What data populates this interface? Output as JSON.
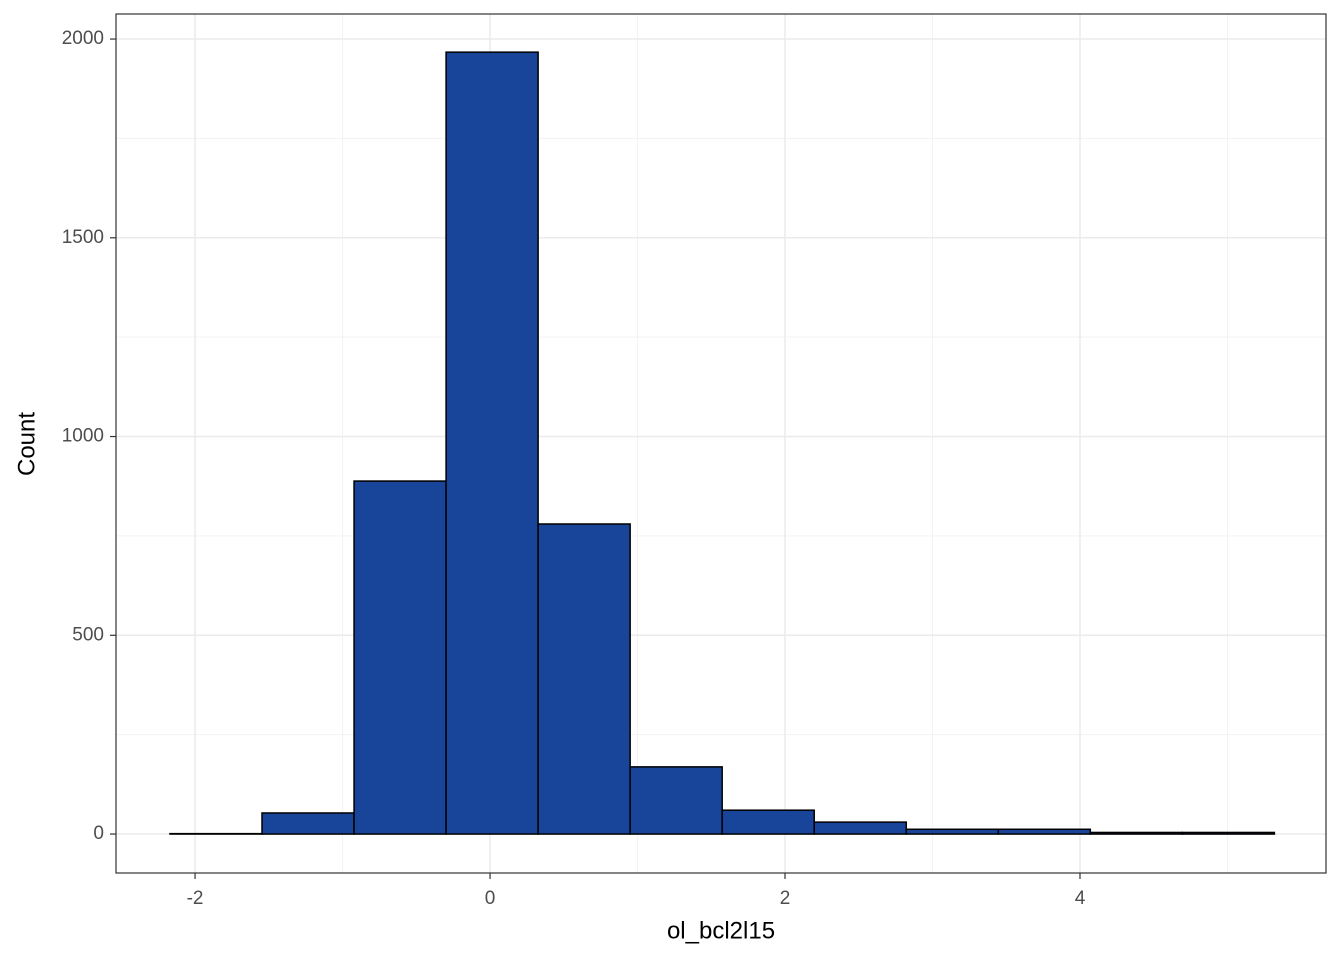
{
  "chart_data": {
    "type": "histogram",
    "x_label": "ol_bcl2l15",
    "y_label": "Count",
    "bins": [
      -2.17,
      -1.546,
      -0.922,
      -0.298,
      0.326,
      0.95,
      1.574,
      2.198,
      2.822,
      3.446,
      4.07,
      4.694,
      5.318
    ],
    "values": [
      1,
      53,
      888,
      1967,
      780,
      169,
      60,
      30,
      12,
      12,
      4,
      4
    ],
    "color": "#18449a",
    "edge_color": "#000000",
    "xlim": [
      -2.536,
      5.668
    ],
    "ylim": [
      -98,
      2063
    ],
    "xticks": [
      -2,
      0,
      2,
      4
    ],
    "yticks": [
      0,
      500,
      1000,
      1500,
      2000
    ],
    "x_minor_grid": [
      -1,
      1,
      3,
      5
    ],
    "y_minor_grid": [
      250,
      750,
      1250,
      1750
    ],
    "grid": true
  }
}
